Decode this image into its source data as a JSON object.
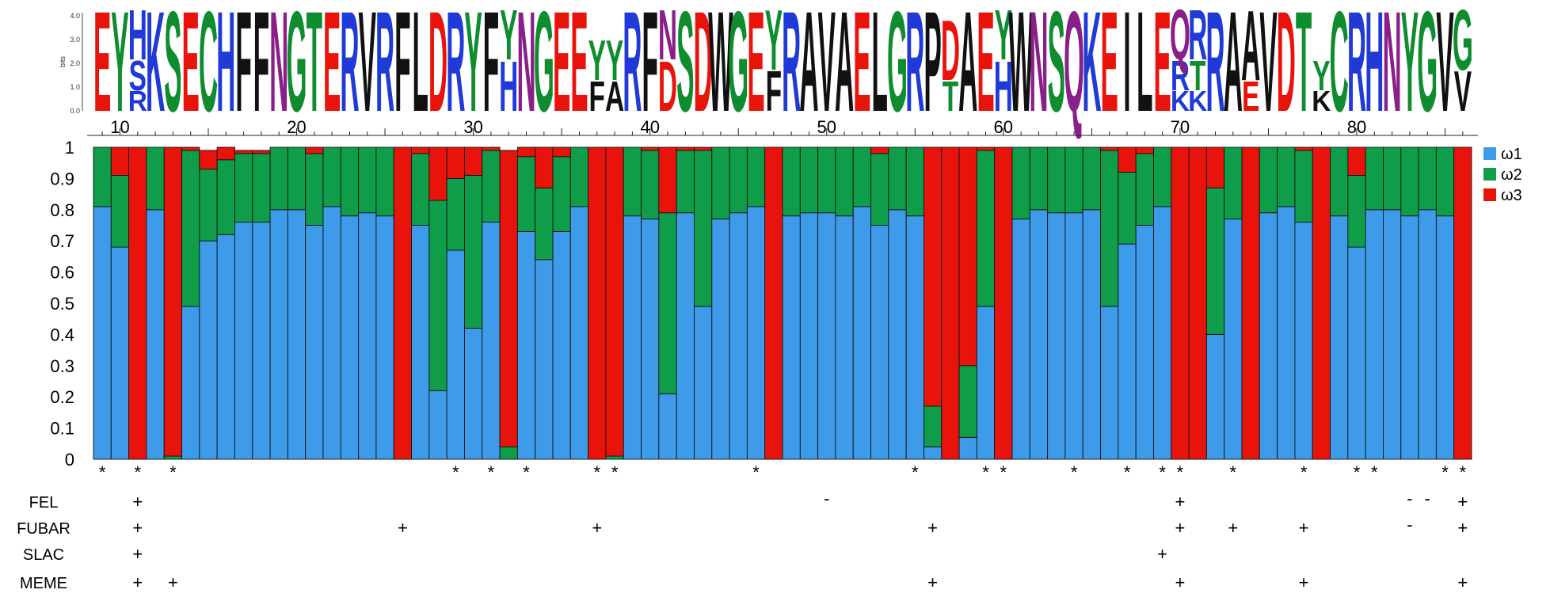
{
  "chart_data": {
    "type": "bar",
    "stacked": true,
    "positions": [
      9,
      10,
      11,
      12,
      13,
      14,
      15,
      16,
      17,
      18,
      19,
      20,
      21,
      22,
      23,
      24,
      25,
      26,
      27,
      28,
      29,
      30,
      31,
      32,
      33,
      34,
      35,
      36,
      37,
      38,
      39,
      40,
      41,
      42,
      43,
      44,
      45,
      46,
      47,
      48,
      49,
      50,
      51,
      52,
      53,
      54,
      55,
      56,
      57,
      58,
      59,
      60,
      61,
      62,
      63,
      64,
      65,
      66,
      67,
      68,
      69,
      70,
      71,
      72,
      73,
      74,
      75,
      76,
      77,
      78,
      79,
      80,
      81,
      82,
      83,
      84,
      85,
      86
    ],
    "x_ticks": [
      "10",
      "20",
      "30",
      "40",
      "50",
      "60",
      "70",
      "80"
    ],
    "x_tick_values": [
      10,
      20,
      30,
      40,
      50,
      60,
      70,
      80
    ],
    "ylim": [
      0,
      1
    ],
    "y_ticks": [
      "0",
      "0.1",
      "0.2",
      "0.3",
      "0.4",
      "0.5",
      "0.6",
      "0.7",
      "0.8",
      "0.9",
      "1"
    ],
    "legend_position": "right",
    "series": [
      {
        "name": "ω1",
        "color": "#3d9be9",
        "values": [
          0.81,
          0.68,
          0,
          0.8,
          0,
          0.49,
          0.7,
          0.72,
          0.76,
          0.76,
          0.8,
          0.8,
          0.75,
          0.81,
          0.78,
          0.79,
          0.78,
          0,
          0.75,
          0.22,
          0.67,
          0.42,
          0.76,
          0,
          0.73,
          0.64,
          0.73,
          0.81,
          0,
          0,
          0.78,
          0.77,
          0.21,
          0.79,
          0.49,
          0.77,
          0.79,
          0.81,
          0,
          0.78,
          0.79,
          0.79,
          0.78,
          0.81,
          0.75,
          0.8,
          0.78,
          0.04,
          0,
          0.07,
          0.49,
          0,
          0.77,
          0.8,
          0.79,
          0.79,
          0.8,
          0.49,
          0.69,
          0.75,
          0.81,
          0,
          0,
          0.4,
          0.77,
          0,
          0.79,
          0.81,
          0.76,
          0,
          0.78,
          0.68,
          0.8,
          0.8,
          0.78,
          0.8,
          0.78,
          0
        ]
      },
      {
        "name": "ω2",
        "color": "#0f9d4a",
        "values": [
          0.19,
          0.23,
          0,
          0.2,
          0.01,
          0.5,
          0.23,
          0.24,
          0.22,
          0.22,
          0.2,
          0.2,
          0.23,
          0.19,
          0.22,
          0.21,
          0.22,
          0,
          0.23,
          0.61,
          0.23,
          0.49,
          0.23,
          0.04,
          0.24,
          0.23,
          0.24,
          0.19,
          0,
          0.01,
          0.22,
          0.22,
          0.58,
          0.2,
          0.5,
          0.23,
          0.21,
          0.19,
          0,
          0.22,
          0.21,
          0.21,
          0.22,
          0.19,
          0.23,
          0.2,
          0.22,
          0.13,
          0,
          0.23,
          0.5,
          0,
          0.23,
          0.2,
          0.21,
          0.21,
          0.2,
          0.5,
          0.23,
          0.23,
          0.19,
          0,
          0,
          0.47,
          0.23,
          0,
          0.21,
          0.19,
          0.23,
          0,
          0.22,
          0.23,
          0.2,
          0.2,
          0.22,
          0.2,
          0.22,
          0
        ]
      },
      {
        "name": "ω3",
        "color": "#e8140c",
        "values": [
          0,
          0.09,
          1,
          0,
          0.99,
          0.01,
          0.06,
          0.04,
          0.01,
          0.01,
          0,
          0,
          0.02,
          0,
          0,
          0,
          0,
          1,
          0.02,
          0.17,
          0.1,
          0.09,
          0.01,
          0.95,
          0.03,
          0.13,
          0.03,
          0,
          1,
          0.99,
          0,
          0.01,
          0.21,
          0.01,
          0.01,
          0,
          0,
          0,
          1,
          0,
          0,
          0,
          0,
          0,
          0.02,
          0,
          0,
          0.83,
          1,
          0.7,
          0.01,
          1,
          0,
          0,
          0,
          0,
          0,
          0.01,
          0.08,
          0.02,
          0,
          1,
          1,
          0.13,
          0,
          1,
          0,
          0,
          0.01,
          1,
          0,
          0.09,
          0,
          0,
          0,
          0,
          0,
          1
        ]
      }
    ],
    "star_label": "*",
    "star_positions": [
      9,
      11,
      13,
      29,
      31,
      33,
      37,
      38,
      46,
      55,
      59,
      60,
      64,
      67,
      69,
      70,
      73,
      77,
      80,
      81,
      85,
      86
    ],
    "methods": [
      {
        "name": "FEL",
        "plus": [
          11,
          70,
          86
        ],
        "minus": [
          50,
          83,
          84
        ]
      },
      {
        "name": "FUBAR",
        "plus": [
          11,
          26,
          37,
          56,
          70,
          73,
          77,
          86
        ],
        "minus": [
          83
        ]
      },
      {
        "name": "SLAC",
        "plus": [
          11,
          69
        ],
        "minus": []
      },
      {
        "name": "MEME",
        "plus": [
          11,
          13,
          56,
          70,
          77,
          86
        ],
        "minus": []
      }
    ],
    "plus_symbol": "+",
    "minus_symbol": "-",
    "logo": {
      "y_axis_label": "bits",
      "y_ticks": [
        "0.0",
        "1.0",
        "2.0",
        "3.0",
        "4.0"
      ],
      "colors": {
        "red": "#e8140c",
        "blue": "#1f3ad6",
        "green": "#0f8c2e",
        "black": "#111111",
        "purple": "#8a1f8a"
      },
      "columns": [
        [
          [
            "E",
            "red",
            1
          ]
        ],
        [
          [
            "Y",
            "green",
            1
          ]
        ],
        [
          [
            "H",
            "blue",
            0.5
          ],
          [
            "S",
            "blue",
            0.3
          ],
          [
            "R",
            "blue",
            0.2
          ]
        ],
        [
          [
            "K",
            "blue",
            1
          ]
        ],
        [
          [
            "S",
            "green",
            1
          ]
        ],
        [
          [
            "E",
            "red",
            1
          ]
        ],
        [
          [
            "C",
            "green",
            1
          ]
        ],
        [
          [
            "H",
            "blue",
            1
          ]
        ],
        [
          [
            "F",
            "black",
            1
          ]
        ],
        [
          [
            "F",
            "black",
            1
          ]
        ],
        [
          [
            "N",
            "purple",
            1
          ]
        ],
        [
          [
            "G",
            "green",
            1
          ]
        ],
        [
          [
            "T",
            "green",
            1
          ]
        ],
        [
          [
            "E",
            "red",
            1
          ]
        ],
        [
          [
            "R",
            "blue",
            1
          ]
        ],
        [
          [
            "V",
            "black",
            1
          ]
        ],
        [
          [
            "R",
            "blue",
            1
          ]
        ],
        [
          [
            "F",
            "black",
            1
          ]
        ],
        [
          [
            "L",
            "black",
            1
          ]
        ],
        [
          [
            "D",
            "red",
            1
          ]
        ],
        [
          [
            "R",
            "blue",
            1
          ]
        ],
        [
          [
            "Y",
            "green",
            1
          ]
        ],
        [
          [
            "F",
            "black",
            1
          ]
        ],
        [
          [
            "H",
            "blue",
            0.5
          ],
          [
            "Y",
            "green",
            0.5
          ]
        ],
        [
          [
            "N",
            "purple",
            1
          ]
        ],
        [
          [
            "G",
            "green",
            1
          ]
        ],
        [
          [
            "E",
            "red",
            1
          ]
        ],
        [
          [
            "E",
            "red",
            1
          ]
        ],
        [
          [
            "Y",
            "green",
            0.4
          ],
          [
            "F",
            "black",
            0.3
          ]
        ],
        [
          [
            "Y",
            "green",
            0.4
          ],
          [
            "A",
            "black",
            0.3
          ]
        ],
        [
          [
            "R",
            "blue",
            1
          ]
        ],
        [
          [
            "F",
            "black",
            1
          ]
        ],
        [
          [
            "D",
            "red",
            0.5
          ],
          [
            "N",
            "purple",
            0.5
          ]
        ],
        [
          [
            "S",
            "green",
            1
          ]
        ],
        [
          [
            "D",
            "red",
            1
          ]
        ],
        [
          [
            "W",
            "black",
            1
          ]
        ],
        [
          [
            "G",
            "green",
            1
          ]
        ],
        [
          [
            "E",
            "red",
            1
          ]
        ],
        [
          [
            "Y",
            "green",
            0.6
          ],
          [
            "F",
            "black",
            0.4
          ]
        ],
        [
          [
            "R",
            "blue",
            1
          ]
        ],
        [
          [
            "A",
            "black",
            1
          ]
        ],
        [
          [
            "V",
            "black",
            1
          ]
        ],
        [
          [
            "A",
            "black",
            1
          ]
        ],
        [
          [
            "E",
            "red",
            1
          ]
        ],
        [
          [
            "L",
            "black",
            1
          ]
        ],
        [
          [
            "G",
            "green",
            1
          ]
        ],
        [
          [
            "R",
            "blue",
            1
          ]
        ],
        [
          [
            "P",
            "black",
            1
          ]
        ],
        [
          [
            "D",
            "red",
            0.6
          ],
          [
            "T",
            "green",
            0.3
          ]
        ],
        [
          [
            "A",
            "black",
            1
          ]
        ],
        [
          [
            "E",
            "red",
            1
          ]
        ],
        [
          [
            "H",
            "blue",
            0.5
          ],
          [
            "Y",
            "green",
            0.5
          ]
        ],
        [
          [
            "W",
            "black",
            1
          ]
        ],
        [
          [
            "N",
            "purple",
            1
          ]
        ],
        [
          [
            "S",
            "green",
            1
          ]
        ],
        [
          [
            "Q",
            "purple",
            1
          ]
        ],
        [
          [
            "K",
            "blue",
            1
          ]
        ],
        [
          [
            "E",
            "red",
            1
          ]
        ],
        [
          [
            "I",
            "black",
            1
          ]
        ],
        [
          [
            "L",
            "black",
            1
          ]
        ],
        [
          [
            "E",
            "red",
            1
          ]
        ],
        [
          [
            "Q",
            "purple",
            0.5
          ],
          [
            "R",
            "blue",
            0.3
          ],
          [
            "K",
            "blue",
            0.2
          ]
        ],
        [
          [
            "R",
            "blue",
            0.5
          ],
          [
            "T",
            "green",
            0.3
          ],
          [
            "K",
            "blue",
            0.2
          ]
        ],
        [
          [
            "R",
            "blue",
            1
          ]
        ],
        [
          [
            "A",
            "black",
            1
          ]
        ],
        [
          [
            "A",
            "black",
            0.7
          ],
          [
            "E",
            "red",
            0.3
          ]
        ],
        [
          [
            "V",
            "black",
            1
          ]
        ],
        [
          [
            "D",
            "red",
            1
          ]
        ],
        [
          [
            "T",
            "green",
            1
          ]
        ],
        [
          [
            "Y",
            "green",
            0.3
          ],
          [
            "K",
            "black",
            0.2
          ]
        ],
        [
          [
            "C",
            "green",
            1
          ]
        ],
        [
          [
            "R",
            "blue",
            1
          ]
        ],
        [
          [
            "H",
            "blue",
            1
          ]
        ],
        [
          [
            "N",
            "purple",
            1
          ]
        ],
        [
          [
            "Y",
            "green",
            1
          ]
        ],
        [
          [
            "G",
            "green",
            1
          ]
        ],
        [
          [
            "V",
            "black",
            1
          ]
        ],
        [
          [
            "G",
            "green",
            0.6
          ],
          [
            "V",
            "black",
            0.4
          ]
        ]
      ]
    }
  }
}
